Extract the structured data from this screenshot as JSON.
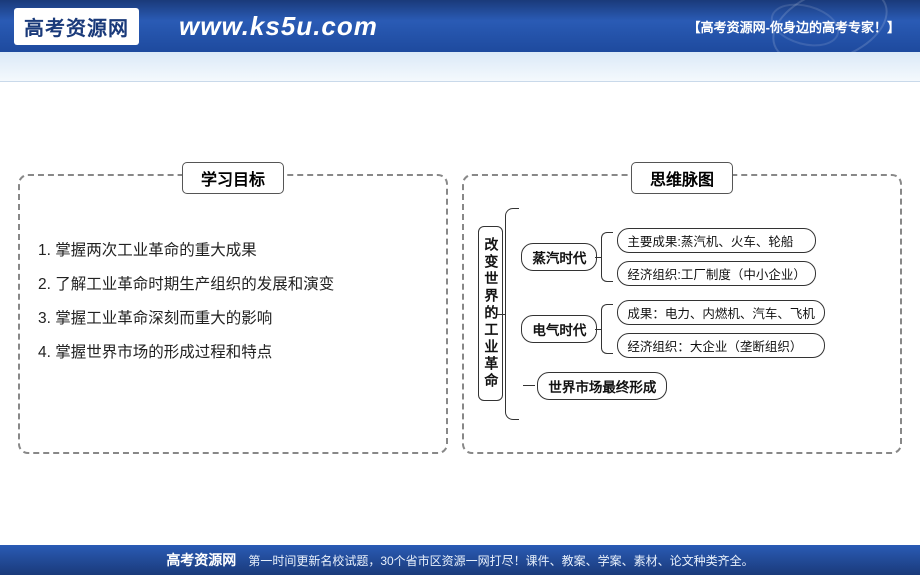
{
  "header": {
    "logo": "高考资源网",
    "url": "www.ks5u.com",
    "tagline": "【高考资源网-你身边的高考专家！】"
  },
  "left": {
    "title": "学习目标",
    "goals": [
      "1. 掌握两次工业革命的重大成果",
      "2. 了解工业革命时期生产组织的发展和演变",
      "3. 掌握工业革命深刻而重大的影响",
      "4. 掌握世界市场的形成过程和特点"
    ]
  },
  "right": {
    "title": "思维脉图",
    "root": "改变世界的工业革命",
    "branches": [
      {
        "label": "蒸汽时代",
        "leaves": [
          "主要成果:蒸汽机、火车、轮船",
          "经济组织:工厂制度（中小企业）"
        ]
      },
      {
        "label": "电气时代",
        "leaves": [
          "成果：电力、内燃机、汽车、飞机",
          "经济组织：大企业（垄断组织）"
        ]
      },
      {
        "label": "世界市场最终形成",
        "leaves": []
      }
    ]
  },
  "footer": {
    "logo": "高考资源网",
    "text": "第一时间更新名校试题，30个省市区资源一网打尽！课件、教案、学案、素材、论文种类齐全。"
  }
}
